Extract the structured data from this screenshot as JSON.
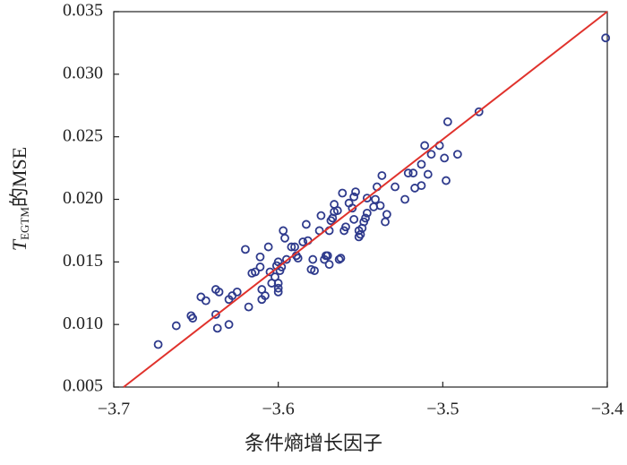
{
  "chart_data": {
    "type": "scatter",
    "xlabel": "条件熵增长因子",
    "ylabel": {
      "main": "T",
      "sub": "EGTM",
      "rest": "的MSE"
    },
    "xlim": [
      -3.7,
      -3.4
    ],
    "ylim": [
      0.005,
      0.035
    ],
    "xticks": [
      {
        "value": -3.7,
        "label": "−3.7"
      },
      {
        "value": -3.6,
        "label": "−3.6"
      },
      {
        "value": -3.5,
        "label": "−3.5"
      },
      {
        "value": -3.4,
        "label": "−3.4"
      }
    ],
    "yticks": [
      0.005,
      {
        "value": 0.01,
        "label": "0.010"
      },
      0.015,
      {
        "value": 0.02,
        "label": "0.020"
      },
      0.025,
      {
        "value": 0.03,
        "label": "0.030"
      },
      0.035
    ],
    "series": [
      {
        "type": "scatter",
        "color": "#2e3a8c",
        "x": [
          -3.673,
          -3.662,
          -3.653,
          -3.652,
          -3.647,
          -3.644,
          -3.638,
          -3.636,
          -3.638,
          -3.637,
          -3.63,
          -3.63,
          -3.628,
          -3.625,
          -3.62,
          -3.618,
          -3.616,
          -3.614,
          -3.611,
          -3.611,
          -3.61,
          -3.61,
          -3.608,
          -3.606,
          -3.605,
          -3.604,
          -3.602,
          -3.601,
          -3.6,
          -3.6,
          -3.6,
          -3.6,
          -3.599,
          -3.598,
          -3.597,
          -3.596,
          -3.595,
          -3.592,
          -3.59,
          -3.589,
          -3.588,
          -3.585,
          -3.583,
          -3.582,
          -3.58,
          -3.578,
          -3.579,
          -3.574,
          -3.575,
          -3.572,
          -3.571,
          -3.57,
          -3.569,
          -3.569,
          -3.568,
          -3.567,
          -3.566,
          -3.566,
          -3.564,
          -3.563,
          -3.562,
          -3.561,
          -3.56,
          -3.559,
          -3.557,
          -3.555,
          -3.554,
          -3.554,
          -3.553,
          -3.551,
          -3.551,
          -3.55,
          -3.549,
          -3.548,
          -3.547,
          -3.546,
          -3.546,
          -3.542,
          -3.541,
          -3.54,
          -3.538,
          -3.537,
          -3.535,
          -3.534,
          -3.529,
          -3.523,
          -3.521,
          -3.518,
          -3.517,
          -3.513,
          -3.513,
          -3.511,
          -3.509,
          -3.507,
          -3.502,
          -3.499,
          -3.498,
          -3.497,
          -3.491,
          -3.478,
          -3.401
        ],
        "values": [
          0.0084,
          0.0099,
          0.0107,
          0.0105,
          0.0122,
          0.0119,
          0.0128,
          0.0126,
          0.0108,
          0.0097,
          0.01,
          0.012,
          0.0123,
          0.0126,
          0.016,
          0.0114,
          0.0141,
          0.0142,
          0.0154,
          0.0146,
          0.0128,
          0.012,
          0.0123,
          0.0162,
          0.0142,
          0.0133,
          0.0138,
          0.0147,
          0.0133,
          0.0129,
          0.0126,
          0.015,
          0.0143,
          0.0146,
          0.0175,
          0.0169,
          0.0152,
          0.0162,
          0.0162,
          0.0155,
          0.0153,
          0.0166,
          0.018,
          0.0167,
          0.0144,
          0.0143,
          0.0152,
          0.0187,
          0.0175,
          0.0152,
          0.0155,
          0.0155,
          0.0148,
          0.0175,
          0.0183,
          0.0185,
          0.019,
          0.0196,
          0.0191,
          0.0152,
          0.0153,
          0.0205,
          0.0175,
          0.0178,
          0.0197,
          0.0193,
          0.0184,
          0.0202,
          0.0206,
          0.017,
          0.0175,
          0.0172,
          0.0177,
          0.0182,
          0.0185,
          0.0201,
          0.0189,
          0.0194,
          0.02,
          0.021,
          0.0195,
          0.0219,
          0.0182,
          0.0188,
          0.021,
          0.02,
          0.0221,
          0.0221,
          0.0209,
          0.0228,
          0.0211,
          0.0243,
          0.022,
          0.0236,
          0.0243,
          0.0233,
          0.0215,
          0.0262,
          0.0236,
          0.027,
          0.0329
        ]
      },
      {
        "type": "line",
        "color": "#e0322c",
        "x": [
          -3.694,
          -3.4
        ],
        "values": [
          0.005,
          0.035
        ]
      }
    ]
  }
}
